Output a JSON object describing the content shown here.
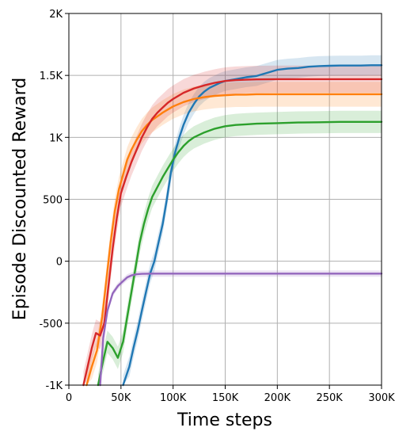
{
  "chart_data": {
    "type": "line",
    "title": "",
    "xlabel": "Time steps",
    "ylabel": "Episode Discounted Reward",
    "xlim": [
      0,
      300000
    ],
    "ylim": [
      -1000,
      2000
    ],
    "xticks": [
      0,
      50000,
      100000,
      150000,
      200000,
      250000,
      300000
    ],
    "xtick_labels": [
      "0",
      "50K",
      "100K",
      "150K",
      "200K",
      "250K",
      "300K"
    ],
    "yticks": [
      -1000,
      -500,
      0,
      500,
      1000,
      1500,
      2000
    ],
    "ytick_labels": [
      "-1K",
      "-500",
      "0",
      "500",
      "1K",
      "1.5K",
      "2K"
    ],
    "grid": true,
    "legend": "none",
    "series": [
      {
        "color": "#1f77b4",
        "band": 80,
        "points": [
          [
            52000,
            -1000
          ],
          [
            58000,
            -850
          ],
          [
            62000,
            -700
          ],
          [
            66000,
            -560
          ],
          [
            70000,
            -400
          ],
          [
            74000,
            -250
          ],
          [
            78000,
            -100
          ],
          [
            82000,
            0
          ],
          [
            86000,
            150
          ],
          [
            90000,
            300
          ],
          [
            94000,
            500
          ],
          [
            98000,
            720
          ],
          [
            102000,
            880
          ],
          [
            106000,
            1000
          ],
          [
            110000,
            1100
          ],
          [
            115000,
            1200
          ],
          [
            120000,
            1270
          ],
          [
            125000,
            1330
          ],
          [
            130000,
            1370
          ],
          [
            135000,
            1400
          ],
          [
            140000,
            1420
          ],
          [
            145000,
            1440
          ],
          [
            150000,
            1455
          ],
          [
            160000,
            1470
          ],
          [
            170000,
            1485
          ],
          [
            180000,
            1495
          ],
          [
            190000,
            1520
          ],
          [
            200000,
            1545
          ],
          [
            210000,
            1555
          ],
          [
            220000,
            1560
          ],
          [
            230000,
            1570
          ],
          [
            240000,
            1575
          ],
          [
            250000,
            1578
          ],
          [
            260000,
            1580
          ],
          [
            270000,
            1580
          ],
          [
            280000,
            1580
          ],
          [
            290000,
            1582
          ],
          [
            300000,
            1582
          ]
        ]
      },
      {
        "color": "#ff7f0e",
        "band": 100,
        "points": [
          [
            17000,
            -1000
          ],
          [
            22000,
            -850
          ],
          [
            27000,
            -720
          ],
          [
            32000,
            -450
          ],
          [
            36000,
            -150
          ],
          [
            40000,
            150
          ],
          [
            44000,
            400
          ],
          [
            48000,
            580
          ],
          [
            52000,
            700
          ],
          [
            56000,
            820
          ],
          [
            60000,
            900
          ],
          [
            65000,
            980
          ],
          [
            70000,
            1050
          ],
          [
            75000,
            1100
          ],
          [
            80000,
            1140
          ],
          [
            85000,
            1170
          ],
          [
            90000,
            1200
          ],
          [
            95000,
            1225
          ],
          [
            100000,
            1250
          ],
          [
            110000,
            1285
          ],
          [
            120000,
            1310
          ],
          [
            130000,
            1325
          ],
          [
            140000,
            1335
          ],
          [
            150000,
            1340
          ],
          [
            160000,
            1345
          ],
          [
            170000,
            1345
          ],
          [
            180000,
            1348
          ],
          [
            200000,
            1348
          ],
          [
            220000,
            1348
          ],
          [
            240000,
            1348
          ],
          [
            260000,
            1348
          ],
          [
            280000,
            1348
          ],
          [
            300000,
            1348
          ]
        ]
      },
      {
        "color": "#2ca02c",
        "band": 90,
        "points": [
          [
            28000,
            -1000
          ],
          [
            33000,
            -800
          ],
          [
            37000,
            -650
          ],
          [
            42000,
            -700
          ],
          [
            47000,
            -780
          ],
          [
            52000,
            -650
          ],
          [
            56000,
            -450
          ],
          [
            60000,
            -250
          ],
          [
            64000,
            -50
          ],
          [
            68000,
            150
          ],
          [
            72000,
            300
          ],
          [
            76000,
            420
          ],
          [
            80000,
            520
          ],
          [
            85000,
            600
          ],
          [
            90000,
            680
          ],
          [
            95000,
            750
          ],
          [
            100000,
            820
          ],
          [
            105000,
            880
          ],
          [
            110000,
            930
          ],
          [
            115000,
            970
          ],
          [
            120000,
            1000
          ],
          [
            130000,
            1040
          ],
          [
            140000,
            1070
          ],
          [
            150000,
            1090
          ],
          [
            160000,
            1100
          ],
          [
            170000,
            1105
          ],
          [
            180000,
            1110
          ],
          [
            200000,
            1115
          ],
          [
            220000,
            1120
          ],
          [
            240000,
            1122
          ],
          [
            260000,
            1125
          ],
          [
            280000,
            1125
          ],
          [
            300000,
            1125
          ]
        ]
      },
      {
        "color": "#d62728",
        "band": 110,
        "points": [
          [
            14000,
            -1000
          ],
          [
            18000,
            -850
          ],
          [
            22000,
            -700
          ],
          [
            26000,
            -580
          ],
          [
            30000,
            -600
          ],
          [
            34000,
            -500
          ],
          [
            38000,
            -200
          ],
          [
            42000,
            100
          ],
          [
            46000,
            350
          ],
          [
            50000,
            550
          ],
          [
            55000,
            680
          ],
          [
            60000,
            800
          ],
          [
            65000,
            900
          ],
          [
            70000,
            1000
          ],
          [
            75000,
            1080
          ],
          [
            80000,
            1150
          ],
          [
            85000,
            1200
          ],
          [
            90000,
            1240
          ],
          [
            95000,
            1280
          ],
          [
            100000,
            1310
          ],
          [
            110000,
            1360
          ],
          [
            120000,
            1395
          ],
          [
            130000,
            1420
          ],
          [
            140000,
            1440
          ],
          [
            150000,
            1455
          ],
          [
            160000,
            1462
          ],
          [
            170000,
            1465
          ],
          [
            180000,
            1468
          ],
          [
            200000,
            1470
          ],
          [
            220000,
            1470
          ],
          [
            240000,
            1470
          ],
          [
            260000,
            1470
          ],
          [
            280000,
            1470
          ],
          [
            300000,
            1470
          ]
        ]
      },
      {
        "color": "#9467bd",
        "band": 25,
        "points": [
          [
            30000,
            -1000
          ],
          [
            33000,
            -620
          ],
          [
            37000,
            -400
          ],
          [
            42000,
            -260
          ],
          [
            47000,
            -200
          ],
          [
            52000,
            -160
          ],
          [
            56000,
            -130
          ],
          [
            60000,
            -115
          ],
          [
            65000,
            -105
          ],
          [
            70000,
            -102
          ],
          [
            80000,
            -100
          ],
          [
            100000,
            -100
          ],
          [
            150000,
            -100
          ],
          [
            200000,
            -100
          ],
          [
            250000,
            -100
          ],
          [
            300000,
            -100
          ]
        ]
      }
    ]
  }
}
